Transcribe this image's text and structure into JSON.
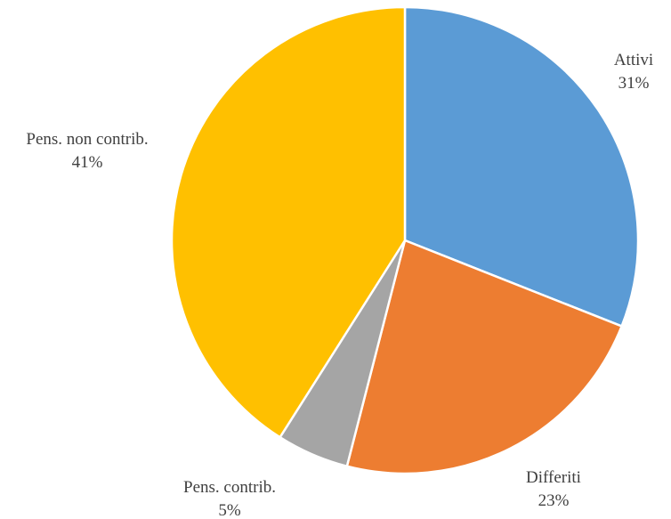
{
  "chart_data": {
    "type": "pie",
    "title": "",
    "start_angle_deg": 0,
    "direction": "clockwise",
    "slices": [
      {
        "name": "Attivi",
        "value": 31,
        "label": "31%",
        "color": "#5B9BD5"
      },
      {
        "name": "Differiti",
        "value": 23,
        "label": "23%",
        "color": "#ED7D31"
      },
      {
        "name": "Pens. contrib.",
        "value": 5,
        "label": "5%",
        "color": "#A5A5A5"
      },
      {
        "name": "Pens. non contrib.",
        "value": 41,
        "label": "41%",
        "color": "#FFC000"
      }
    ],
    "slice_border_color": "#FFFFFF",
    "label_color": "#404040",
    "legend": "none"
  }
}
